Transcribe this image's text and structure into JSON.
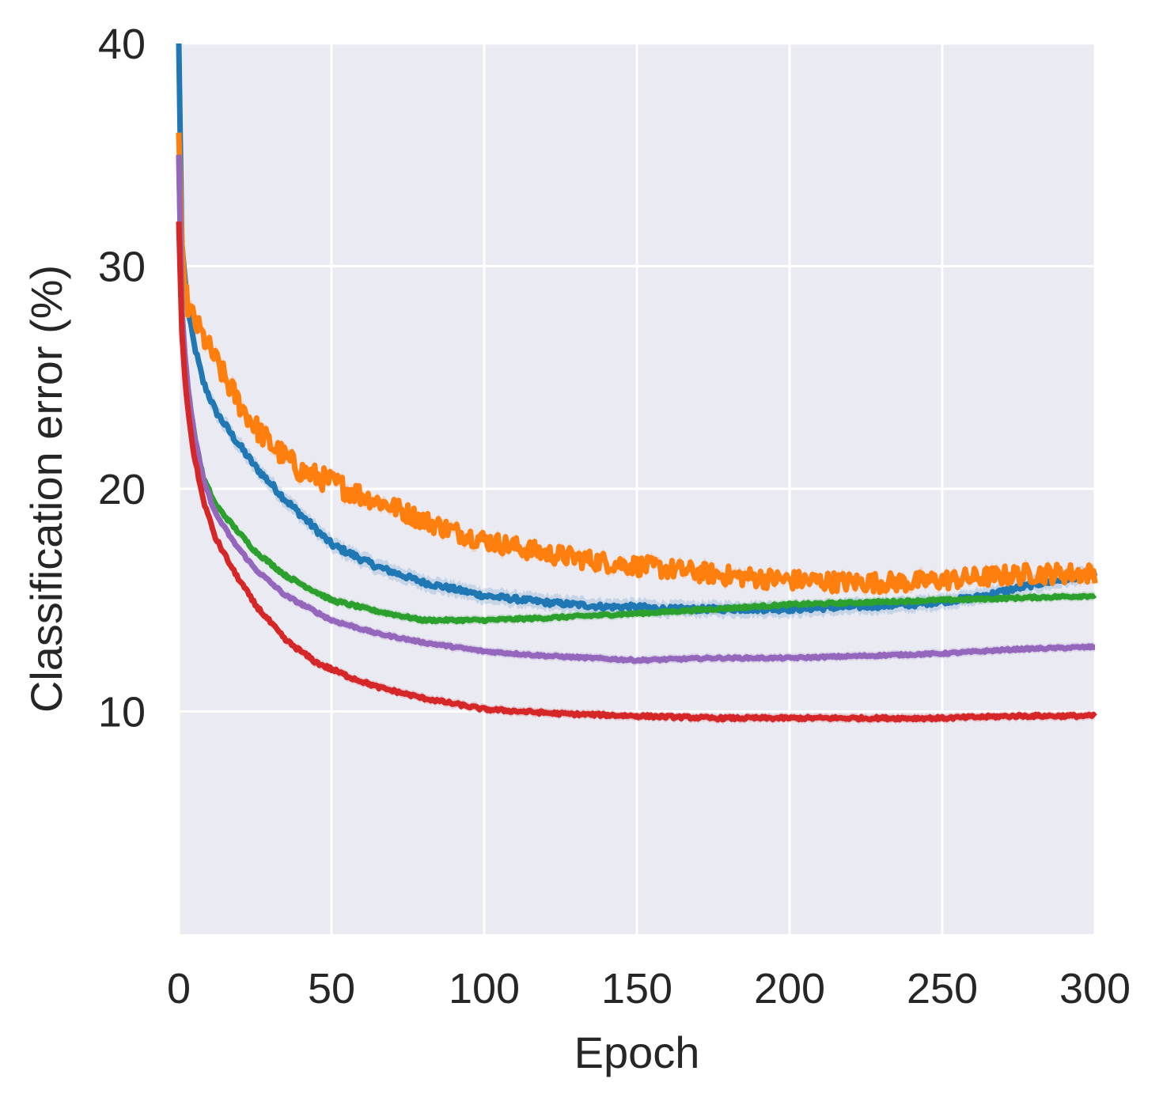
{
  "chart_data": {
    "type": "line",
    "title": "",
    "xlabel": "Epoch",
    "ylabel": "Classification error (%)",
    "xlim": [
      0,
      300
    ],
    "ylim": [
      0,
      40
    ],
    "xticks": [
      0,
      50,
      100,
      150,
      200,
      250,
      300
    ],
    "yticks": [
      10,
      20,
      30,
      40
    ],
    "grid": true,
    "legend": "none",
    "colors": {
      "background": "#eaeaf2",
      "grid": "#ffffff",
      "text": "#262626"
    },
    "series": [
      {
        "name": "blue",
        "color": "#1f77b4",
        "noise": 0.12,
        "band": 0.35,
        "x": [
          0,
          1,
          2,
          3,
          5,
          8,
          12,
          18,
          25,
          35,
          50,
          65,
          80,
          100,
          120,
          140,
          150,
          160,
          180,
          200,
          220,
          240,
          260,
          280,
          300
        ],
        "y": [
          40,
          31,
          29.5,
          28,
          26.5,
          24.8,
          23.5,
          22.3,
          21,
          19.5,
          17.5,
          16.5,
          15.8,
          15.2,
          14.9,
          14.7,
          14.7,
          14.6,
          14.6,
          14.6,
          14.7,
          14.8,
          15.1,
          15.7,
          16.2
        ]
      },
      {
        "name": "orange",
        "color": "#ff7f0e",
        "noise": 0.45,
        "band": 0.25,
        "x": [
          0,
          1,
          2,
          3,
          6,
          10,
          15,
          20,
          25,
          30,
          40,
          50,
          60,
          70,
          80,
          90,
          100,
          120,
          140,
          160,
          180,
          200,
          220,
          240,
          260,
          280,
          300
        ],
        "y": [
          36,
          31,
          29,
          28.2,
          27.3,
          26.3,
          25,
          23.8,
          22.8,
          22,
          20.8,
          20.3,
          19.7,
          19.2,
          18.6,
          18.1,
          17.7,
          17.1,
          16.7,
          16.4,
          16.1,
          15.9,
          15.8,
          15.8,
          16,
          16.2,
          16.2
        ]
      },
      {
        "name": "green",
        "color": "#2ca02c",
        "noise": 0.06,
        "band": 0.2,
        "x": [
          0,
          1,
          2,
          3,
          5,
          8,
          12,
          18,
          25,
          35,
          50,
          65,
          80,
          100,
          120,
          150,
          175,
          200,
          225,
          250,
          275,
          300
        ],
        "y": [
          35,
          28,
          26,
          24.5,
          22.5,
          20.5,
          19.3,
          18.3,
          17.2,
          16.1,
          15,
          14.5,
          14.1,
          14.1,
          14.2,
          14.4,
          14.6,
          14.8,
          14.9,
          15.0,
          15.1,
          15.2
        ]
      },
      {
        "name": "purple",
        "color": "#9467bd",
        "noise": 0.05,
        "band": 0.2,
        "x": [
          0,
          1,
          2,
          3,
          5,
          8,
          12,
          18,
          25,
          35,
          50,
          65,
          80,
          100,
          120,
          150,
          175,
          200,
          225,
          250,
          275,
          300
        ],
        "y": [
          35,
          28,
          26,
          24.5,
          22.5,
          20.4,
          18.9,
          17.6,
          16.4,
          15.2,
          14.1,
          13.5,
          13.1,
          12.7,
          12.5,
          12.3,
          12.4,
          12.4,
          12.5,
          12.6,
          12.8,
          12.9
        ]
      },
      {
        "name": "red",
        "color": "#d62728",
        "noise": 0.07,
        "band": 0.2,
        "x": [
          0,
          1,
          2,
          3,
          5,
          8,
          12,
          18,
          25,
          35,
          45,
          55,
          65,
          80,
          100,
          125,
          150,
          175,
          200,
          225,
          250,
          275,
          300
        ],
        "y": [
          32,
          27,
          25,
          23.5,
          21.5,
          19.5,
          17.8,
          16.3,
          14.8,
          13.2,
          12.2,
          11.6,
          11.1,
          10.6,
          10.1,
          9.9,
          9.8,
          9.7,
          9.7,
          9.7,
          9.7,
          9.8,
          9.8
        ]
      }
    ]
  }
}
